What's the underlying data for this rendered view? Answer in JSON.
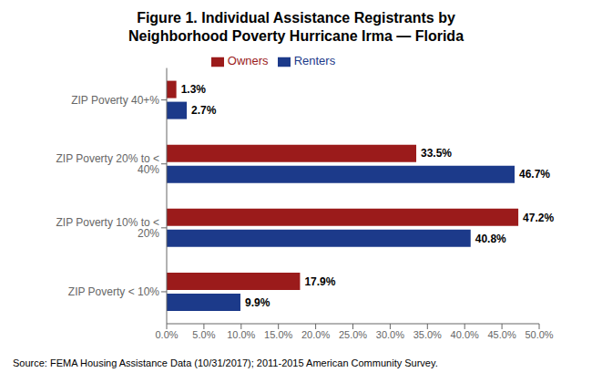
{
  "chart_data": {
    "type": "bar",
    "orientation": "horizontal",
    "title": "Figure 1. Individual Assistance Registrants by\nNeighborhood Poverty Hurricane Irma — Florida",
    "categories": [
      "ZIP Poverty 40+%",
      "ZIP Poverty 20% to < 40%",
      "ZIP Poverty 10% to < 20%",
      "ZIP Poverty < 10%"
    ],
    "series": [
      {
        "name": "Owners",
        "color": "#9B1B1B",
        "values": [
          1.3,
          33.5,
          47.2,
          17.9
        ],
        "value_labels": [
          "1.3%",
          "33.5%",
          "47.2%",
          "17.9%"
        ]
      },
      {
        "name": "Renters",
        "color": "#1C3A8A",
        "values": [
          2.7,
          46.7,
          40.8,
          9.9
        ],
        "value_labels": [
          "2.7%",
          "46.7%",
          "40.8%",
          "9.9%"
        ]
      }
    ],
    "xlim": [
      0,
      50
    ],
    "xticks": [
      {
        "value": 0,
        "label": "0.0%"
      },
      {
        "value": 5,
        "label": "5.0%"
      },
      {
        "value": 10,
        "label": "10.0%"
      },
      {
        "value": 15,
        "label": "15.0%"
      },
      {
        "value": 20,
        "label": "20.0%"
      },
      {
        "value": 25,
        "label": "25.0%"
      },
      {
        "value": 30,
        "label": "30.0%"
      },
      {
        "value": 35,
        "label": "35.0%"
      },
      {
        "value": 40,
        "label": "40.0%"
      },
      {
        "value": 45,
        "label": "45.0%"
      },
      {
        "value": 50,
        "label": "50.0%"
      }
    ],
    "data_labels": true,
    "legend": "top",
    "grid": false,
    "annotations": [
      "Source: FEMA Housing Assistance Data (10/31/2017); 2011-2015 American Community Survey."
    ]
  }
}
